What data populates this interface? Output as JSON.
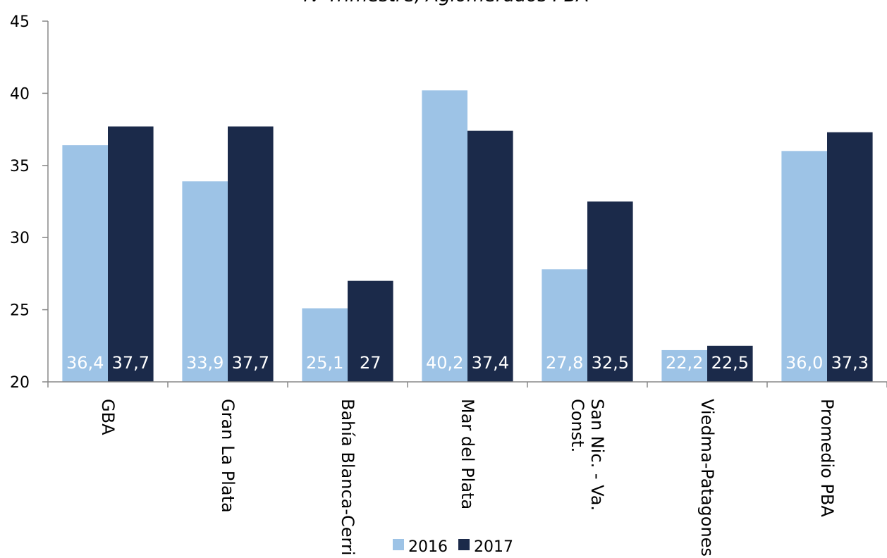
{
  "chart_data": {
    "type": "bar",
    "title": "IV Trimestre, Aglomerados PBA",
    "categories": [
      "GBA",
      "Gran La Plata",
      "Bahía Blanca-Cerri",
      "Mar del Plata",
      "San Nic. - Va. Const.",
      "Viedma-Patagones",
      "Promedio PBA"
    ],
    "series": [
      {
        "name": "2016",
        "color": "#9dc3e6",
        "values": [
          36.4,
          33.9,
          25.1,
          40.2,
          27.8,
          22.2,
          36.0
        ],
        "value_labels": [
          "36,4",
          "33,9",
          "25,1",
          "40,2",
          "27,8",
          "22,2",
          "36,0"
        ]
      },
      {
        "name": "2017",
        "color": "#1b2a4a",
        "values": [
          37.7,
          37.7,
          27,
          37.4,
          32.5,
          22.5,
          37.3
        ],
        "value_labels": [
          "37,7",
          "37,7",
          "27",
          "37,4",
          "32,5",
          "22,5",
          "37,3"
        ]
      }
    ],
    "ylim": [
      20,
      45
    ],
    "yticks": [
      20,
      25,
      30,
      35,
      40,
      45
    ],
    "grid": false,
    "legend": "bottom"
  }
}
